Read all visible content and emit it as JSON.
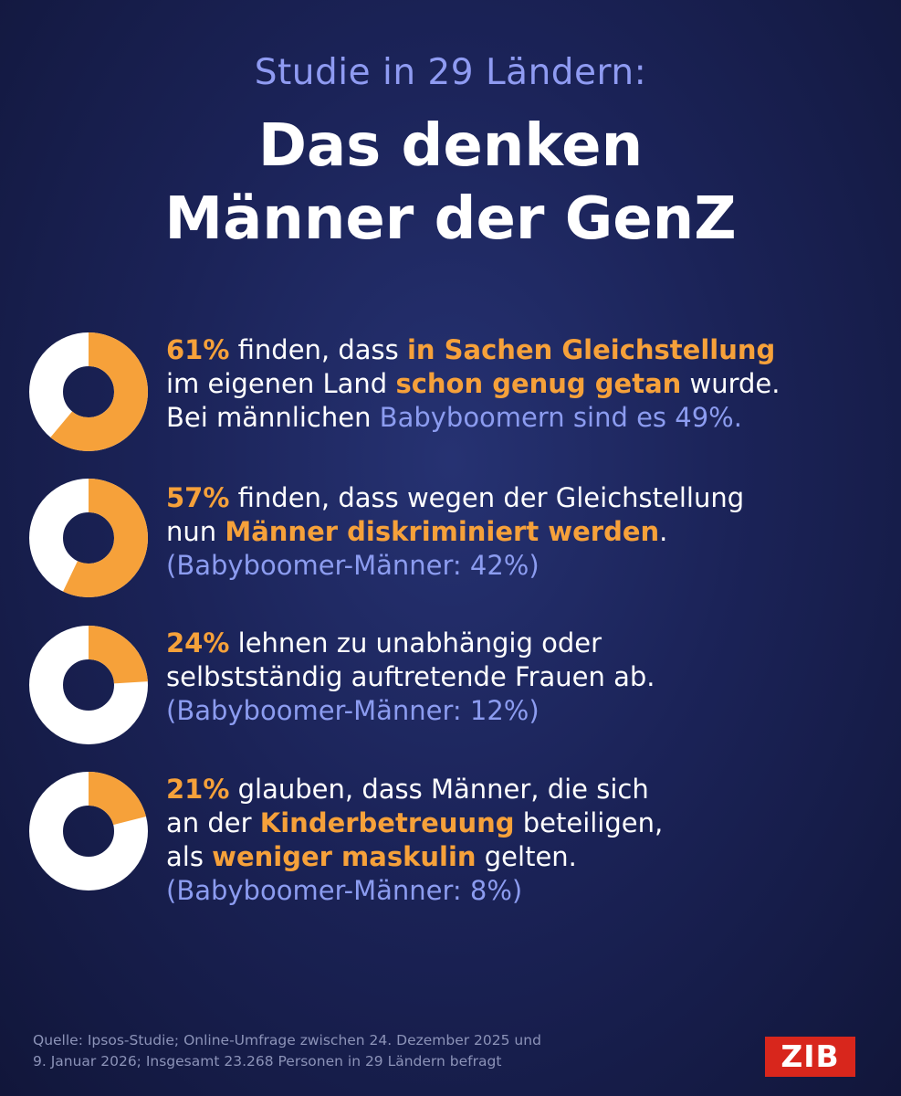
{
  "header": {
    "subtitle": "Studie in 29 Ländern:",
    "title_line1": "Das denken",
    "title_line2": "Männer der GenZ"
  },
  "stats": [
    {
      "line1": [
        {
          "text": "61%",
          "style": "hl"
        },
        {
          "text": " finden, dass ",
          "style": ""
        },
        {
          "text": "in Sachen Gleichstellung",
          "style": "hl"
        }
      ],
      "line2": [
        {
          "text": "im eigenen Land ",
          "style": ""
        },
        {
          "text": "schon genug getan",
          "style": "hl"
        },
        {
          "text": " wurde.",
          "style": ""
        }
      ],
      "line3": [
        {
          "text": "Bei männlichen ",
          "style": ""
        },
        {
          "text": "Babyboomern sind es 49%.",
          "style": "blue"
        }
      ]
    },
    {
      "line1": [
        {
          "text": "57%",
          "style": "hl"
        },
        {
          "text": " finden, dass wegen der Gleichstellung",
          "style": ""
        }
      ],
      "line2": [
        {
          "text": "nun ",
          "style": ""
        },
        {
          "text": "Männer diskriminiert werden",
          "style": "hl"
        },
        {
          "text": ".",
          "style": ""
        }
      ],
      "line3": [
        {
          "text": "(Babyboomer-Männer: 42%)",
          "style": "blue"
        }
      ]
    },
    {
      "line1": [
        {
          "text": "24%",
          "style": "hl"
        },
        {
          "text": " lehnen zu unabhängig oder",
          "style": ""
        }
      ],
      "line2": [
        {
          "text": "selbstständig auftretende Frauen ab.",
          "style": ""
        }
      ],
      "line3": [
        {
          "text": "(Babyboomer-Männer: 12%)",
          "style": "blue"
        }
      ]
    },
    {
      "line1": [
        {
          "text": "21%",
          "style": "hl"
        },
        {
          "text": " glauben, dass Männer, die sich",
          "style": ""
        }
      ],
      "line2": [
        {
          "text": "an der ",
          "style": ""
        },
        {
          "text": "Kinderbetreuung",
          "style": "hl"
        },
        {
          "text": " beteiligen,",
          "style": ""
        }
      ],
      "line3": [
        {
          "text": "als ",
          "style": ""
        },
        {
          "text": "weniger maskulin",
          "style": "hl"
        },
        {
          "text": " gelten.",
          "style": ""
        }
      ],
      "line4": [
        {
          "text": "(Babyboomer-Männer: 8%)",
          "style": "blue"
        }
      ]
    }
  ],
  "chart_data": {
    "type": "pie",
    "style": "donut",
    "categories": [
      "Gleichstellung genug getan",
      "Männer diskriminiert",
      "Lehnen unabhängige Frauen ab",
      "Kinderbetreuung weniger maskulin"
    ],
    "values": [
      61,
      57,
      24,
      21
    ],
    "unit": "%",
    "colors": {
      "value": "#f6a13a",
      "rest": "#ffffff"
    },
    "comparison_values": [
      49,
      42,
      12,
      8
    ]
  },
  "footer": {
    "source_line1": "Quelle: Ipsos-Studie; Online-Umfrage zwischen 24. Dezember 2025 und",
    "source_line2": "9. Januar 2026; Insgesamt 23.268 Personen in 29 Ländern befragt",
    "logo": "ZIB"
  }
}
